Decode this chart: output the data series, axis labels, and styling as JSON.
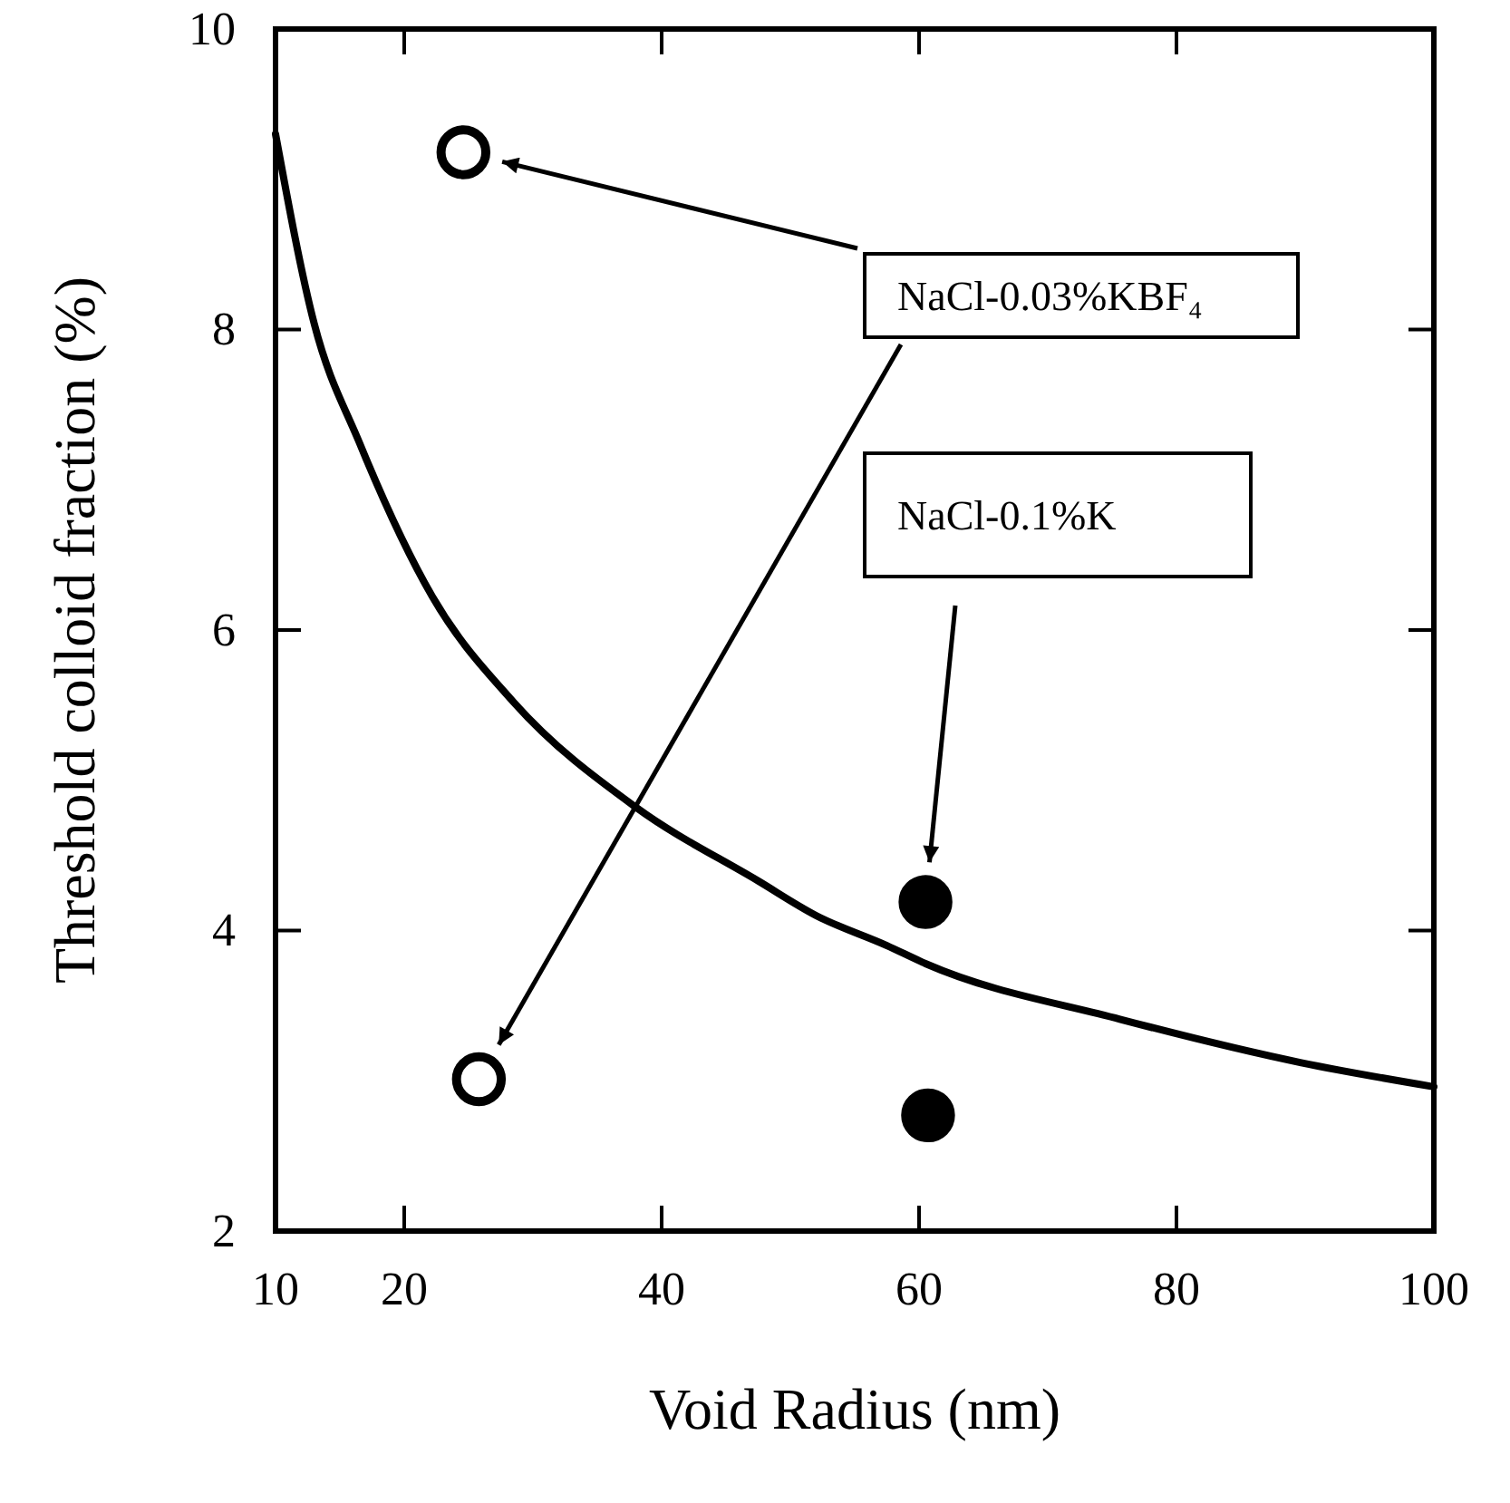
{
  "chart_data": {
    "type": "scatter",
    "xlabel": "Void Radius (nm)",
    "ylabel": "Threshold colloid fraction (%)",
    "xlim": [
      10,
      100
    ],
    "xticks": [
      10,
      20,
      40,
      60,
      80,
      100
    ],
    "ylim": [
      2,
      10
    ],
    "yticks": [
      2,
      4,
      6,
      8,
      10
    ],
    "grid": false,
    "legend": false,
    "series": [
      {
        "type": "line",
        "color": "#000000",
        "marker": "none",
        "line_style": "solid",
        "x": [
          10,
          13,
          16.5,
          22.2,
          28.5,
          38,
          47.5,
          52,
          57.5,
          60.5,
          75.6,
          89.7,
          100
        ],
        "values": [
          9.3,
          8.04,
          7.25,
          6.22,
          5.52,
          4.82,
          4.33,
          4.1,
          3.9,
          3.78,
          3.41,
          3.12,
          2.96
        ]
      },
      {
        "name": "NaCl-0.03%KBF₄",
        "color": "#ffffff",
        "marker": "circle",
        "x": [
          24.6,
          25.8
        ],
        "values": [
          9.18,
          3.01
        ]
      },
      {
        "name": "NaCl-0.1%K",
        "color": "#000000",
        "marker": "circle",
        "x": [
          60.5,
          60.7
        ],
        "values": [
          4.19,
          2.77
        ]
      }
    ]
  }
}
